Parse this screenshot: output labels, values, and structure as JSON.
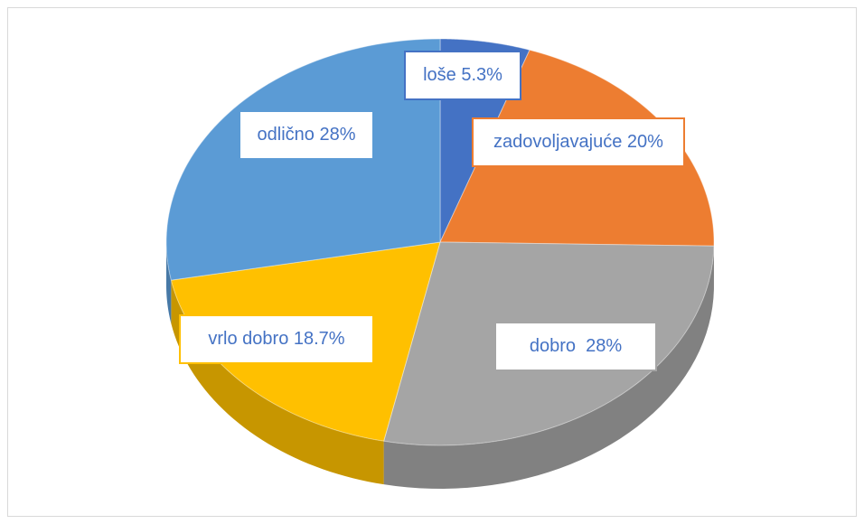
{
  "chart_data": {
    "type": "pie3d",
    "values": [
      5.3,
      20,
      28,
      18.7,
      28
    ],
    "value_labels": [
      "loše 5.3%",
      "zadovoljavajuće 20%",
      "dobro  28%",
      "vrlo dobro 18.7%",
      "odlično 28%"
    ],
    "colors": [
      "#4472c4",
      "#ed7d31",
      "#a5a5a5",
      "#ffc000",
      "#5b9bd5"
    ]
  }
}
